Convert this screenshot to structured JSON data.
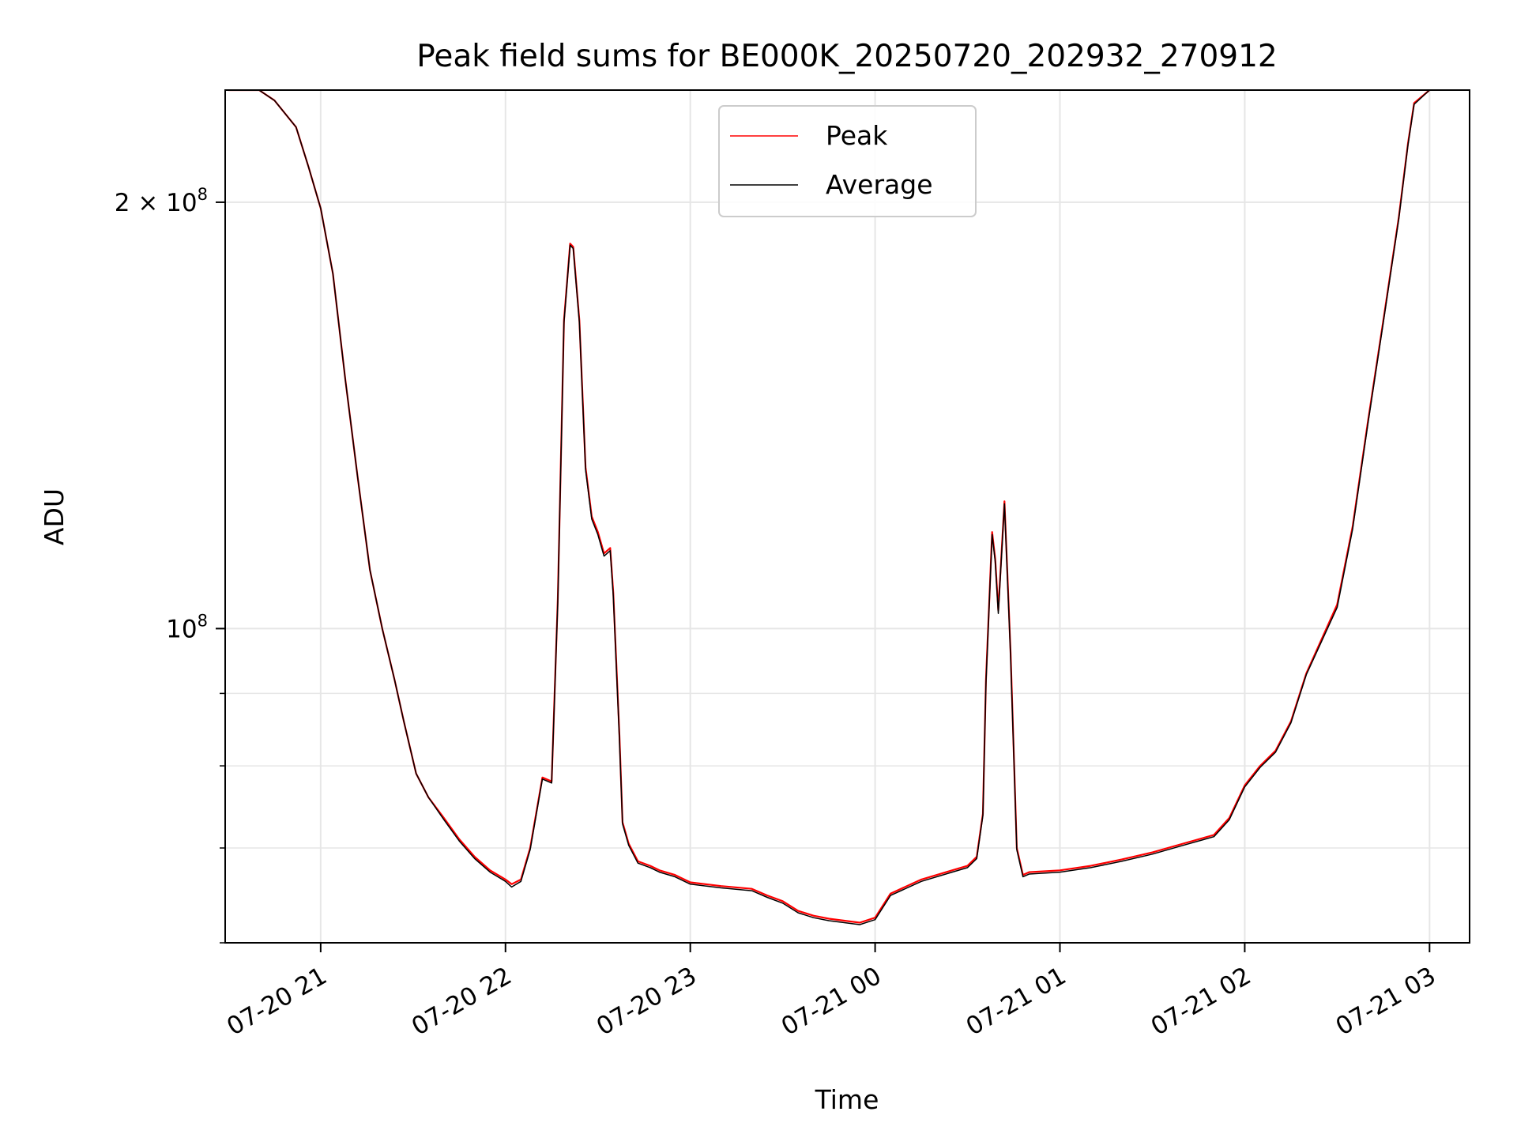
{
  "chart_data": {
    "type": "line",
    "title": "Peak field sums for BE000K_20250720_202932_270912",
    "xlabel": "Time",
    "ylabel": "ADU",
    "yscale": "log",
    "grid": true,
    "legend_position": "top-center",
    "xlim": [
      "2025-07-20 20:29",
      "2025-07-21 03:13"
    ],
    "ylim": [
      60000000,
      240000000
    ],
    "x_ticks": [
      {
        "t": "2025-07-20 21:00",
        "label": "07-20 21"
      },
      {
        "t": "2025-07-20 22:00",
        "label": "07-20 22"
      },
      {
        "t": "2025-07-20 23:00",
        "label": "07-20 23"
      },
      {
        "t": "2025-07-21 00:00",
        "label": "07-21 00"
      },
      {
        "t": "2025-07-21 01:00",
        "label": "07-21 01"
      },
      {
        "t": "2025-07-21 02:00",
        "label": "07-21 02"
      },
      {
        "t": "2025-07-21 03:00",
        "label": "07-21 03"
      }
    ],
    "y_major_ticks": [
      {
        "value": 100000000,
        "label_base": "10",
        "label_exp": "8"
      },
      {
        "value": 200000000,
        "label_base": "2 × 10",
        "label_exp": "8"
      }
    ],
    "y_minor_ticks": [
      60000000,
      70000000,
      80000000,
      90000000
    ],
    "x": [
      "2025-07-20 20:30",
      "2025-07-20 20:40",
      "2025-07-20 20:45",
      "2025-07-20 20:52",
      "2025-07-20 20:56",
      "2025-07-20 21:00",
      "2025-07-20 21:04",
      "2025-07-20 21:08",
      "2025-07-20 21:12",
      "2025-07-20 21:16",
      "2025-07-20 21:20",
      "2025-07-20 21:24",
      "2025-07-20 21:27",
      "2025-07-20 21:31",
      "2025-07-20 21:35",
      "2025-07-20 21:40",
      "2025-07-20 21:45",
      "2025-07-20 21:50",
      "2025-07-20 21:55",
      "2025-07-20 22:00",
      "2025-07-20 22:02",
      "2025-07-20 22:05",
      "2025-07-20 22:08",
      "2025-07-20 22:12",
      "2025-07-20 22:15",
      "2025-07-20 22:17",
      "2025-07-20 22:19",
      "2025-07-20 22:21",
      "2025-07-20 22:22",
      "2025-07-20 22:24",
      "2025-07-20 22:26",
      "2025-07-20 22:28",
      "2025-07-20 22:30",
      "2025-07-20 22:32",
      "2025-07-20 22:34",
      "2025-07-20 22:35",
      "2025-07-20 22:37",
      "2025-07-20 22:38",
      "2025-07-20 22:40",
      "2025-07-20 22:43",
      "2025-07-20 22:47",
      "2025-07-20 22:50",
      "2025-07-20 22:55",
      "2025-07-20 23:00",
      "2025-07-20 23:10",
      "2025-07-20 23:20",
      "2025-07-20 23:25",
      "2025-07-20 23:30",
      "2025-07-20 23:35",
      "2025-07-20 23:40",
      "2025-07-20 23:45",
      "2025-07-20 23:50",
      "2025-07-20 23:55",
      "2025-07-21 00:00",
      "2025-07-21 00:05",
      "2025-07-21 00:15",
      "2025-07-21 00:25",
      "2025-07-21 00:30",
      "2025-07-21 00:33",
      "2025-07-21 00:35",
      "2025-07-21 00:36",
      "2025-07-21 00:38",
      "2025-07-21 00:39",
      "2025-07-21 00:40",
      "2025-07-21 00:42",
      "2025-07-21 00:44",
      "2025-07-21 00:46",
      "2025-07-21 00:48",
      "2025-07-21 00:50",
      "2025-07-21 01:00",
      "2025-07-21 01:10",
      "2025-07-21 01:20",
      "2025-07-21 01:30",
      "2025-07-21 01:40",
      "2025-07-21 01:50",
      "2025-07-21 01:55",
      "2025-07-21 02:00",
      "2025-07-21 02:05",
      "2025-07-21 02:10",
      "2025-07-21 02:15",
      "2025-07-21 02:20",
      "2025-07-21 02:30",
      "2025-07-21 02:35",
      "2025-07-21 02:40",
      "2025-07-21 02:45",
      "2025-07-21 02:50",
      "2025-07-21 02:53",
      "2025-07-21 02:55",
      "2025-07-21 03:00"
    ],
    "series": [
      {
        "name": "Peak",
        "color": "#ff0000",
        "values": [
          240000000,
          240000000,
          236000000,
          226000000,
          212000000,
          198000000,
          178000000,
          150000000,
          128000000,
          110000000,
          100000000,
          92000000,
          86000000,
          79000000,
          76000000,
          73500000,
          71000000,
          69000000,
          67500000,
          66500000,
          66000000,
          66500000,
          70000000,
          78500000,
          78000000,
          105000000,
          165000000,
          187000000,
          186000000,
          165000000,
          130000000,
          120000000,
          117000000,
          113000000,
          114000000,
          106000000,
          84000000,
          73000000,
          70500000,
          68500000,
          68000000,
          67500000,
          67000000,
          66200000,
          65800000,
          65500000,
          64800000,
          64200000,
          63200000,
          62700000,
          62400000,
          62200000,
          62000000,
          62500000,
          65000000,
          66500000,
          67500000,
          68000000,
          69000000,
          74000000,
          92000000,
          117000000,
          112000000,
          103000000,
          123000000,
          96000000,
          70000000,
          67000000,
          67300000,
          67500000,
          68000000,
          68700000,
          69500000,
          70500000,
          71500000,
          73500000,
          77500000,
          80000000,
          82000000,
          86000000,
          93000000,
          104000000,
          118000000,
          140000000,
          165000000,
          195000000,
          220000000,
          235000000,
          240000000
        ]
      },
      {
        "name": "Average",
        "color": "#000000",
        "values": [
          240000000,
          240000000,
          236000000,
          226000000,
          212000000,
          198000000,
          178000000,
          150000000,
          128000000,
          110000000,
          100000000,
          92000000,
          86000000,
          79000000,
          76000000,
          73300000,
          70800000,
          68800000,
          67300000,
          66300000,
          65700000,
          66300000,
          69800000,
          78300000,
          77800000,
          104500000,
          164500000,
          186500000,
          185500000,
          164500000,
          129500000,
          119500000,
          116500000,
          112500000,
          113500000,
          105500000,
          83500000,
          72800000,
          70300000,
          68300000,
          67800000,
          67300000,
          66800000,
          66000000,
          65600000,
          65300000,
          64600000,
          64000000,
          63000000,
          62500000,
          62200000,
          62000000,
          61800000,
          62300000,
          64800000,
          66300000,
          67300000,
          67800000,
          68800000,
          73800000,
          91500000,
          116500000,
          111500000,
          102500000,
          122500000,
          95500000,
          69800000,
          66800000,
          67100000,
          67300000,
          67800000,
          68500000,
          69300000,
          70300000,
          71300000,
          73300000,
          77300000,
          79800000,
          81800000,
          85800000,
          92800000,
          103500000,
          117500000,
          139500000,
          164500000,
          194500000,
          219500000,
          234500000,
          240000000
        ]
      }
    ]
  }
}
